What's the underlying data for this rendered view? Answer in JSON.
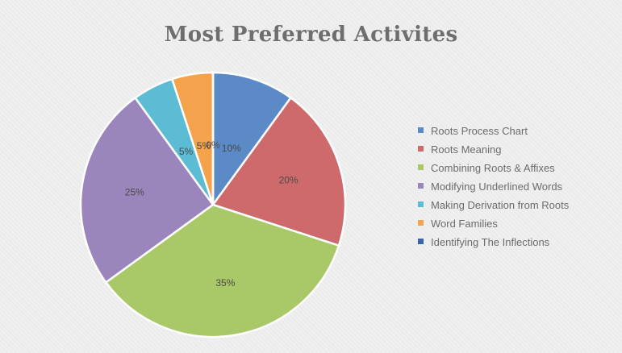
{
  "chart_data": {
    "type": "pie",
    "title": "Most Preferred Activites",
    "slices": [
      {
        "label": "Roots Process Chart",
        "value": 10,
        "display": "10%",
        "color": "#5b8ac6"
      },
      {
        "label": "Roots Meaning",
        "value": 20,
        "display": "20%",
        "color": "#cf6a6c"
      },
      {
        "label": "Combining Roots & Affixes",
        "value": 35,
        "display": "35%",
        "color": "#a9c868"
      },
      {
        "label": "Modifying Underlined Words",
        "value": 25,
        "display": "25%",
        "color": "#9a86bd"
      },
      {
        "label": "Making Derivation from Roots",
        "value": 5,
        "display": "5%",
        "color": "#5bbcd3"
      },
      {
        "label": "Word Families",
        "value": 5,
        "display": "5%",
        "color": "#f5a24c"
      },
      {
        "label": "Identifying The Inflections",
        "value": 0,
        "display": "0%",
        "color": "#3a64a8"
      }
    ],
    "legend_position": "right"
  }
}
